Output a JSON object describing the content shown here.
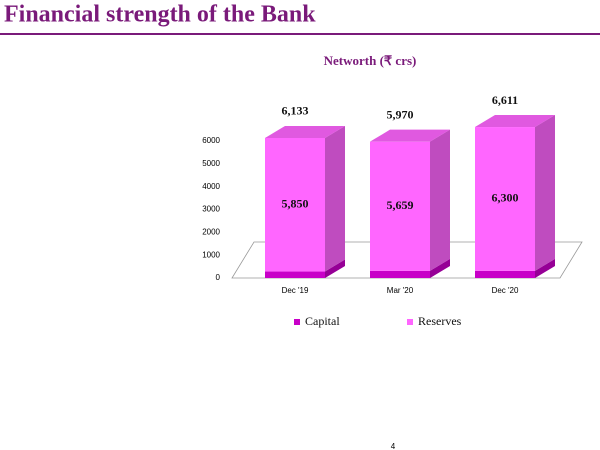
{
  "header": {
    "title": "Financial strength of the Bank"
  },
  "chart_data": {
    "type": "bar3d_stacked",
    "title": "Networth (₹ crs)",
    "categories": [
      "Dec '19",
      "Mar '20",
      "Dec '20"
    ],
    "series": [
      {
        "name": "Capital",
        "color": "#c800c8",
        "values": [
          283,
          311,
          311
        ]
      },
      {
        "name": "Reserves",
        "color": "#ff66ff",
        "values": [
          5850,
          5659,
          6300
        ],
        "value_labels": [
          "5,850",
          "5,659",
          "6,300"
        ]
      }
    ],
    "totals": [
      6133,
      5970,
      6611
    ],
    "totals_labels": [
      "6,133",
      "5,970",
      "6,611"
    ],
    "ylim": [
      0,
      6000
    ],
    "yticks": [
      0,
      1000,
      2000,
      3000,
      4000,
      5000,
      6000
    ],
    "legend": "bottom"
  },
  "footer": {
    "page": "4"
  }
}
